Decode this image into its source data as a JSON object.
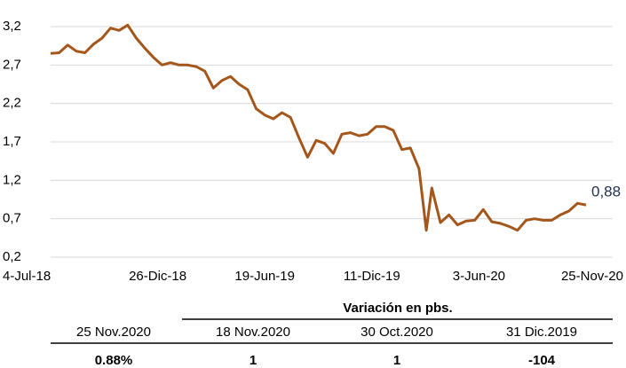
{
  "chart_data": {
    "type": "line",
    "x": [
      "2018-07-04",
      "2018-07-18",
      "2018-08-01",
      "2018-08-15",
      "2018-08-29",
      "2018-09-12",
      "2018-09-26",
      "2018-10-10",
      "2018-10-24",
      "2018-11-07",
      "2018-11-21",
      "2018-12-05",
      "2018-12-19",
      "2019-01-02",
      "2019-01-16",
      "2019-01-30",
      "2019-02-13",
      "2019-02-27",
      "2019-03-13",
      "2019-03-27",
      "2019-04-10",
      "2019-04-24",
      "2019-05-08",
      "2019-05-22",
      "2019-06-05",
      "2019-06-19",
      "2019-07-03",
      "2019-07-17",
      "2019-07-31",
      "2019-08-14",
      "2019-08-28",
      "2019-09-11",
      "2019-09-25",
      "2019-10-09",
      "2019-10-23",
      "2019-11-06",
      "2019-11-20",
      "2019-12-04",
      "2019-12-18",
      "2020-01-01",
      "2020-01-15",
      "2020-01-29",
      "2020-02-12",
      "2020-02-26",
      "2020-03-09",
      "2020-03-18",
      "2020-04-01",
      "2020-04-15",
      "2020-04-29",
      "2020-05-13",
      "2020-05-27",
      "2020-06-10",
      "2020-06-24",
      "2020-07-08",
      "2020-07-22",
      "2020-08-05",
      "2020-08-19",
      "2020-09-02",
      "2020-09-16",
      "2020-09-30",
      "2020-10-14",
      "2020-10-28",
      "2020-11-11",
      "2020-11-25"
    ],
    "series": [
      {
        "color": "#a5561b",
        "values": [
          2.85,
          2.86,
          2.96,
          2.88,
          2.86,
          2.97,
          3.05,
          3.18,
          3.15,
          3.22,
          3.05,
          2.92,
          2.8,
          2.7,
          2.73,
          2.7,
          2.7,
          2.68,
          2.62,
          2.4,
          2.5,
          2.55,
          2.45,
          2.38,
          2.13,
          2.05,
          2.0,
          2.08,
          2.02,
          1.75,
          1.5,
          1.72,
          1.68,
          1.55,
          1.8,
          1.82,
          1.78,
          1.8,
          1.9,
          1.9,
          1.85,
          1.6,
          1.62,
          1.35,
          0.55,
          1.1,
          0.65,
          0.75,
          0.62,
          0.67,
          0.68,
          0.82,
          0.66,
          0.64,
          0.6,
          0.55,
          0.68,
          0.7,
          0.68,
          0.68,
          0.75,
          0.8,
          0.9,
          0.88
        ]
      }
    ],
    "annotations": [
      {
        "x": "2020-11-25",
        "y": 0.88,
        "label": "0,88"
      }
    ],
    "xlim": [
      "2018-07-04",
      "2020-11-25"
    ],
    "xticks": [
      {
        "value": "2018-07-04",
        "label": "4-Jul-18"
      },
      {
        "value": "2018-12-26",
        "label": "26-Dic-18"
      },
      {
        "value": "2019-06-19",
        "label": "19-Jun-19"
      },
      {
        "value": "2019-12-11",
        "label": "11-Dic-19"
      },
      {
        "value": "2020-06-03",
        "label": "3-Jun-20"
      },
      {
        "value": "2020-11-25",
        "label": "25-Nov-20"
      }
    ],
    "ylim": [
      0.2,
      3.2
    ],
    "yticks": [
      {
        "value": 0.2,
        "label": "0,2"
      },
      {
        "value": 0.7,
        "label": "0,7"
      },
      {
        "value": 1.2,
        "label": "1,2"
      },
      {
        "value": 1.7,
        "label": "1,7"
      },
      {
        "value": 2.2,
        "label": "2,2"
      },
      {
        "value": 2.7,
        "label": "2,7"
      },
      {
        "value": 3.2,
        "label": "3,2"
      }
    ],
    "grid": true
  },
  "table": {
    "group_header": "Variación en pbs.",
    "columns": [
      "25 Nov.2020",
      "18 Nov.2020",
      "30 Oct.2020",
      "31 Dic.2019"
    ],
    "row": [
      "0.88%",
      1,
      1,
      -104
    ]
  }
}
